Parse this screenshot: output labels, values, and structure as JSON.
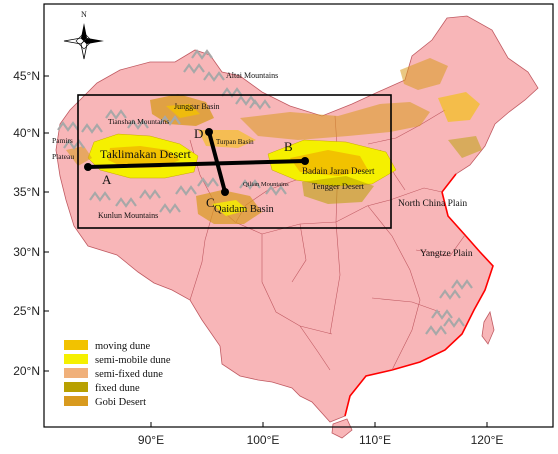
{
  "compass": {
    "north_label": "N"
  },
  "axes": {
    "y_ticks": [
      "45°N",
      "40°N",
      "35°N",
      "30°N",
      "25°N",
      "20°N"
    ],
    "x_ticks": [
      "90°E",
      "100°E",
      "110°E",
      "120°E"
    ]
  },
  "places": {
    "altai": "Altai Mountains",
    "junggar": "Junggar Basin",
    "tianshan": "Tianshan Mountains",
    "pamirs": "Pamirs",
    "plateau": "Plateau",
    "taklimakan": "Taklimakan Desert",
    "turpan": "Turpan Basin",
    "badain": "Badain Jaran Desert",
    "tengger": "Tengger Desert",
    "qilian": "Qilian Mountains",
    "qaidam": "Qaidam Basin",
    "kunlun": "Kunlun Mountains",
    "north_china": "North China Plain",
    "yangtze": "Yangtze Plain"
  },
  "transect_points": {
    "A": "A",
    "B": "B",
    "C": "C",
    "D": "D"
  },
  "legend": [
    {
      "label": "moving dune",
      "color": "#f2c200"
    },
    {
      "label": "semi-mobile dune",
      "color": "#f5f000"
    },
    {
      "label": "semi-fixed dune",
      "color": "#f0b07a"
    },
    {
      "label": "fixed dune",
      "color": "#b8a000"
    },
    {
      "label": "Gobi Desert",
      "color": "#d89a1e"
    }
  ],
  "colors": {
    "land": "#f8b6b8",
    "border": "#c05a62",
    "frame": "#000000",
    "mountain": "#a8a8a8",
    "coast": "#ff0000"
  }
}
